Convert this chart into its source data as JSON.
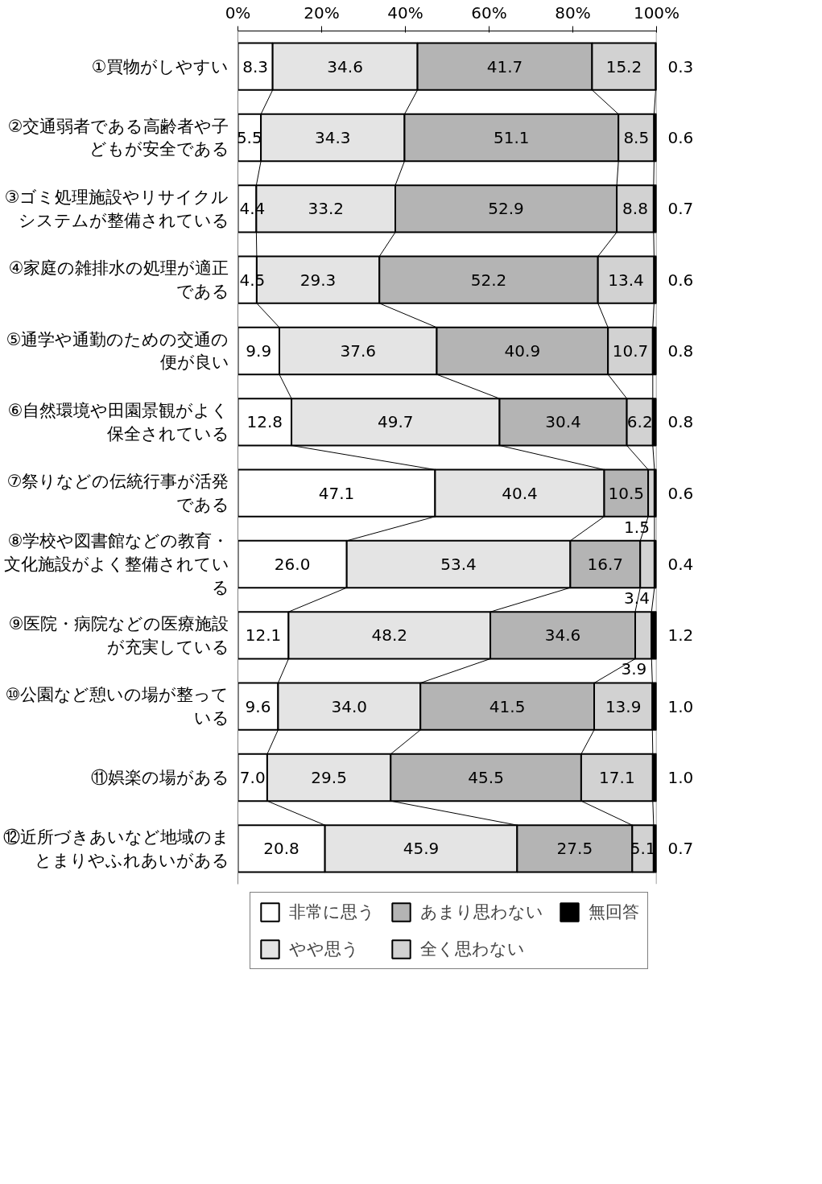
{
  "chart_data": {
    "type": "bar",
    "orientation": "horizontal",
    "stacked": true,
    "legend": "bottom",
    "grid": false,
    "categories": [
      "①買物がしやすい",
      "②交通弱者である高齢者や子どもが安全である",
      "③ゴミ処理施設やリサイクルシステムが整備されている",
      "④家庭の雑排水の処理が適正である",
      "⑤通学や通勤のための交通の便が良い",
      "⑥自然環境や田園景観がよく保全されている",
      "⑦祭りなどの伝統行事が活発である",
      "⑧学校や図書館などの教育・文化施設がよく整備されている",
      "⑨医院・病院などの医療施設が充実している",
      "⑩公園など憩いの場が整っている",
      "⑪娯楽の場がある",
      "⑫近所づきあいなど地域のまとまりやふれあいがある"
    ],
    "xlim": [
      0,
      100
    ],
    "xticks": [
      {
        "value": 0,
        "label": "0%"
      },
      {
        "value": 20,
        "label": "20%"
      },
      {
        "value": 40,
        "label": "40%"
      },
      {
        "value": 60,
        "label": "60%"
      },
      {
        "value": 80,
        "label": "80%"
      },
      {
        "value": 100,
        "label": "100%"
      }
    ],
    "series": [
      {
        "name": "非常に思う",
        "color": "#ffffff",
        "values": [
          8.3,
          5.5,
          4.4,
          4.5,
          9.9,
          12.8,
          47.1,
          26.0,
          12.1,
          9.6,
          7.0,
          20.8
        ],
        "value_labels": [
          "8.3",
          "5.5",
          "4.4",
          "4.5",
          "9.9",
          "12.8",
          "47.1",
          "26.0",
          "12.1",
          "9.6",
          "7.0",
          "20.8"
        ]
      },
      {
        "name": "やや思う",
        "color": "#e4e4e4",
        "values": [
          34.6,
          34.3,
          33.2,
          29.3,
          37.6,
          49.7,
          40.4,
          53.4,
          48.2,
          34.0,
          29.5,
          45.9
        ],
        "value_labels": [
          "34.6",
          "34.3",
          "33.2",
          "29.3",
          "37.6",
          "49.7",
          "40.4",
          "53.4",
          "48.2",
          "34.0",
          "29.5",
          "45.9"
        ]
      },
      {
        "name": "あまり思わない",
        "color": "#b4b4b4",
        "values": [
          41.7,
          51.1,
          52.9,
          52.2,
          40.9,
          30.4,
          10.5,
          16.7,
          34.6,
          41.5,
          45.5,
          27.5
        ],
        "value_labels": [
          "41.7",
          "51.1",
          "52.9",
          "52.2",
          "40.9",
          "30.4",
          "10.5",
          "16.7",
          "34.6",
          "41.5",
          "45.5",
          "27.5"
        ]
      },
      {
        "name": "全く思わない",
        "color": "#d2d2d2",
        "values": [
          15.2,
          8.5,
          8.8,
          13.4,
          10.7,
          6.2,
          1.5,
          3.4,
          3.9,
          13.9,
          17.1,
          5.1
        ],
        "value_labels": [
          "15.2",
          "8.5",
          "8.8",
          "13.4",
          "10.7",
          "6.2",
          "1.5",
          "3.4",
          "3.9",
          "13.9",
          "17.1",
          "5.1"
        ]
      },
      {
        "name": "無回答",
        "color": "#000000",
        "values": [
          0.3,
          0.6,
          0.7,
          0.6,
          0.8,
          0.8,
          0.6,
          0.4,
          1.2,
          1.0,
          1.0,
          0.7
        ],
        "value_labels": [
          "0.3",
          "0.6",
          "0.7",
          "0.6",
          "0.8",
          "0.8",
          "0.6",
          "0.4",
          "1.2",
          "1.0",
          "1.0",
          "0.7"
        ]
      }
    ]
  }
}
